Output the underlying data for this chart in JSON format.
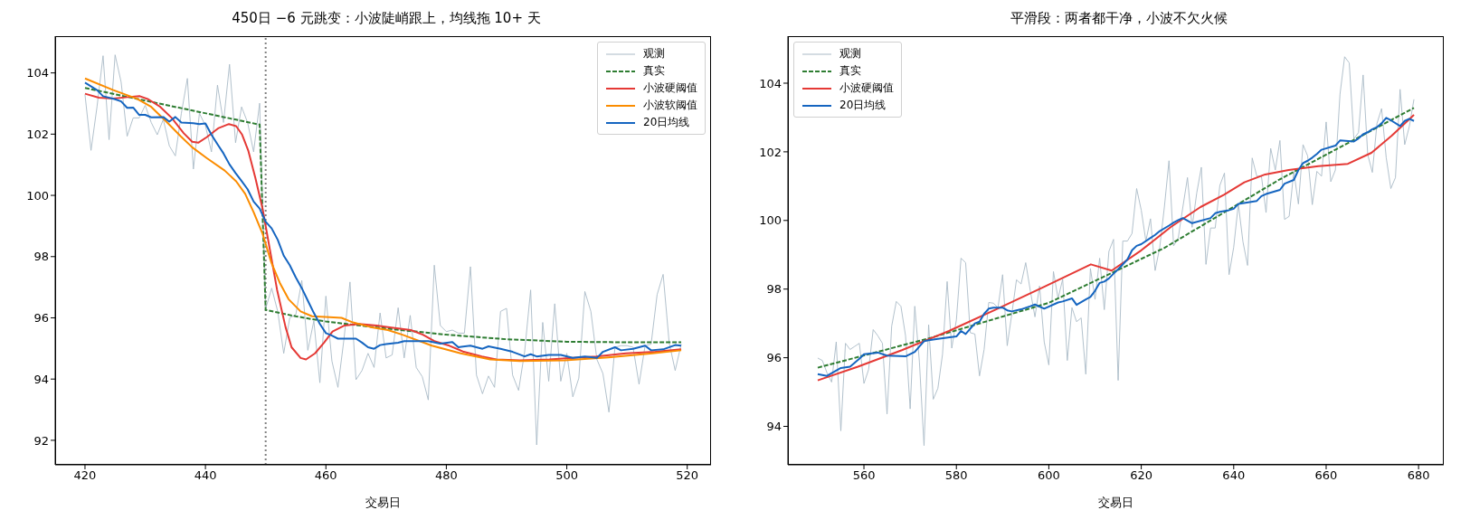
{
  "chart_data": [
    {
      "type": "line",
      "title": "450日 −6 元跳变：小波陡峭跟上，均线拖 10+ 天",
      "xlabel": "交易日",
      "xlim": [
        415.05,
        523.95
      ],
      "xticks": [
        420,
        440,
        460,
        480,
        500,
        520
      ],
      "ylim": [
        91.2,
        105.2
      ],
      "yticks": [
        92,
        94,
        96,
        98,
        100,
        102,
        104
      ],
      "legend": "top right",
      "ref_lines": [
        {
          "axis": "x",
          "value": 450,
          "color": "#808080",
          "line_style": "dotted"
        }
      ],
      "series": [
        {
          "name": "观测",
          "color": "#a9bac6",
          "x": [
            420,
            421,
            422,
            423,
            424,
            425,
            426,
            427,
            428,
            429,
            430,
            431,
            432,
            433,
            434,
            435,
            436,
            437,
            438,
            439,
            440,
            441,
            442,
            443,
            444,
            445,
            446,
            447,
            448,
            449,
            450,
            451,
            452,
            453,
            454,
            455,
            456,
            457,
            458,
            459,
            460,
            461,
            462,
            463,
            464,
            465,
            466,
            467,
            468,
            469,
            470,
            471,
            472,
            473,
            474,
            475,
            476,
            477,
            478,
            479,
            480,
            481,
            482,
            483,
            484,
            485,
            486,
            487,
            488,
            489,
            490,
            491,
            492,
            493,
            494,
            495,
            496,
            497,
            498,
            499,
            500,
            501,
            502,
            503,
            504,
            505,
            506,
            507,
            508,
            509,
            510,
            511,
            512,
            513,
            514,
            515,
            516,
            517,
            518,
            519
          ],
          "values": [
            103.29,
            101.47,
            102.9,
            104.56,
            101.82,
            104.59,
            103.7,
            101.93,
            102.53,
            102.53,
            102.94,
            102.38,
            101.98,
            102.48,
            101.62,
            101.29,
            102.68,
            103.82,
            100.86,
            102.68,
            102.28,
            101.42,
            103.6,
            102.38,
            104.28,
            101.72,
            102.89,
            102.38,
            101.42,
            103.01,
            96.3,
            96.97,
            96.21,
            94.84,
            96.0,
            96.1,
            97.22,
            94.94,
            95.9,
            93.88,
            96.71,
            94.59,
            93.73,
            95.3,
            97.17,
            93.98,
            94.28,
            94.84,
            94.38,
            96.16,
            94.69,
            94.79,
            96.33,
            94.69,
            96.08,
            94.38,
            94.08,
            93.32,
            97.72,
            95.75,
            95.55,
            95.6,
            95.5,
            95.5,
            97.67,
            94.13,
            93.52,
            94.1,
            93.73,
            96.21,
            96.31,
            94.13,
            93.63,
            94.89,
            96.91,
            91.85,
            95.85,
            93.93,
            96.46,
            93.93,
            94.84,
            93.42,
            94.03,
            96.86,
            96.21,
            94.64,
            94.18,
            92.92,
            95.04,
            95.09,
            95.09,
            95.04,
            93.83,
            95.09,
            95.14,
            96.76,
            97.42,
            95.19,
            94.28,
            95.14
          ]
        },
        {
          "name": "真实",
          "color": "#2e7d32",
          "line_style": "dashed",
          "x": [
            420,
            449,
            450,
            455,
            460,
            470,
            480,
            490,
            500,
            510,
            519
          ],
          "values": [
            103.51,
            102.31,
            96.26,
            96.05,
            95.88,
            95.65,
            95.45,
            95.3,
            95.22,
            95.2,
            95.2
          ]
        },
        {
          "name": "小波硬阈值",
          "color": "#e53935",
          "x": [
            420,
            422.3,
            424.7,
            427.1,
            429.1,
            430.5,
            432.5,
            434.4,
            436.4,
            437.8,
            438.8,
            440.2,
            442.2,
            443.9,
            445.1,
            446.1,
            447.1,
            448.3,
            449.5,
            450.7,
            451.9,
            453.3,
            454.3,
            455.8,
            456.7,
            458.2,
            459.7,
            461.1,
            463.1,
            465.5,
            468.4,
            470.3,
            474.1,
            476.1,
            478,
            480.5,
            482.9,
            485.9,
            488.3,
            492.2,
            497.1,
            501,
            504.9,
            509.8,
            514.7,
            519
          ],
          "values": [
            103.32,
            103.19,
            103.16,
            103.21,
            103.24,
            103.14,
            102.89,
            102.53,
            102.03,
            101.75,
            101.72,
            101.9,
            102.2,
            102.33,
            102.26,
            101.98,
            101.47,
            100.56,
            99.55,
            98.23,
            96.91,
            95.7,
            95.04,
            94.69,
            94.64,
            94.84,
            95.19,
            95.55,
            95.75,
            95.8,
            95.75,
            95.7,
            95.6,
            95.45,
            95.24,
            95.09,
            94.89,
            94.74,
            94.64,
            94.61,
            94.64,
            94.69,
            94.74,
            94.84,
            94.89,
            94.97
          ]
        },
        {
          "name": "小波软阈值",
          "color": "#fb8c00",
          "x": [
            420,
            424.7,
            428.6,
            431,
            433.4,
            435.9,
            437.8,
            440.2,
            443.2,
            445.1,
            446.6,
            448,
            449.5,
            450.9,
            452.4,
            453.8,
            455.8,
            457.7,
            460.6,
            462.6,
            464.5,
            467.4,
            470.3,
            472.7,
            477.6,
            482.4,
            487.3,
            492.2,
            499.6,
            506.9,
            514.2,
            519
          ],
          "values": [
            103.82,
            103.44,
            103.16,
            102.89,
            102.43,
            101.93,
            101.57,
            101.22,
            100.81,
            100.46,
            100.05,
            99.45,
            98.74,
            97.83,
            97.12,
            96.61,
            96.21,
            96.05,
            96.02,
            96.0,
            95.85,
            95.7,
            95.6,
            95.45,
            95.09,
            94.84,
            94.64,
            94.59,
            94.61,
            94.71,
            94.84,
            94.94
          ]
        },
        {
          "name": "20日均线",
          "color": "#1565c0",
          "x": [
            420,
            422,
            423,
            425,
            426,
            427,
            428,
            429,
            430,
            431,
            433,
            434,
            435,
            436,
            438,
            439,
            440,
            441,
            442,
            443,
            444,
            445,
            446,
            447,
            448,
            449,
            450,
            451,
            452,
            453,
            454,
            455,
            456,
            457,
            458,
            459,
            460,
            461,
            462,
            465,
            466,
            467,
            468,
            469,
            470,
            472,
            473,
            477,
            479,
            481,
            482,
            484,
            486,
            487,
            489,
            491,
            493,
            494,
            495,
            497,
            499,
            501,
            503,
            505,
            506,
            508,
            509,
            511,
            513,
            514,
            516,
            518,
            519
          ],
          "values": [
            103.68,
            103.44,
            103.24,
            103.14,
            103.07,
            102.86,
            102.87,
            102.63,
            102.63,
            102.55,
            102.56,
            102.41,
            102.56,
            102.38,
            102.36,
            102.33,
            102.35,
            101.98,
            101.67,
            101.37,
            101.01,
            100.73,
            100.47,
            100.2,
            99.8,
            99.57,
            99.14,
            98.92,
            98.55,
            98.03,
            97.72,
            97.32,
            96.97,
            96.56,
            96.16,
            95.8,
            95.5,
            95.42,
            95.32,
            95.32,
            95.19,
            95.04,
            94.99,
            95.11,
            95.14,
            95.19,
            95.24,
            95.24,
            95.16,
            95.21,
            95.04,
            95.09,
            94.99,
            95.07,
            94.99,
            94.89,
            94.74,
            94.81,
            94.74,
            94.79,
            94.79,
            94.69,
            94.74,
            94.69,
            94.89,
            95.04,
            94.94,
            94.99,
            95.09,
            94.94,
            94.97,
            95.11,
            95.09
          ]
        }
      ]
    },
    {
      "type": "line",
      "title": "平滑段：两者都干净，小波不欠火候",
      "xlabel": "交易日",
      "xlim": [
        543.55,
        685.45
      ],
      "xticks": [
        560,
        580,
        600,
        620,
        640,
        660,
        680
      ],
      "ylim": [
        92.88,
        105.37
      ],
      "yticks": [
        94,
        96,
        98,
        100,
        102,
        104
      ],
      "legend": "top left",
      "series": [
        {
          "name": "观测",
          "color": "#a9bac6",
          "x": [
            550,
            551,
            552,
            553,
            554,
            555,
            556,
            557,
            558,
            559,
            560,
            561,
            562,
            563,
            564,
            565,
            566,
            567,
            568,
            569,
            570,
            571,
            572,
            573,
            574,
            575,
            576,
            577,
            578,
            579,
            580,
            581,
            582,
            583,
            584,
            585,
            586,
            587,
            588,
            589,
            590,
            591,
            592,
            593,
            594,
            595,
            596,
            597,
            598,
            599,
            600,
            601,
            602,
            603,
            604,
            605,
            606,
            607,
            608,
            609,
            610,
            611,
            612,
            613,
            614,
            615,
            616,
            617,
            618,
            619,
            620,
            621,
            622,
            623,
            624,
            625,
            626,
            627,
            628,
            629,
            630,
            631,
            632,
            633,
            634,
            635,
            636,
            637,
            638,
            639,
            640,
            641,
            642,
            643,
            644,
            645,
            646,
            647,
            648,
            649,
            650,
            651,
            652,
            653,
            654,
            655,
            656,
            657,
            658,
            659,
            660,
            661,
            662,
            663,
            664,
            665,
            666,
            667,
            668,
            669,
            670,
            671,
            672,
            673,
            674,
            675,
            676,
            677,
            678,
            679
          ],
          "values": [
            95.99,
            95.92,
            95.56,
            95.29,
            96.46,
            93.87,
            96.42,
            96.24,
            96.33,
            96.42,
            95.25,
            95.65,
            96.82,
            96.64,
            96.42,
            94.36,
            96.92,
            97.64,
            97.5,
            96.64,
            94.51,
            97.5,
            95.88,
            93.44,
            96.96,
            94.79,
            95.11,
            96.1,
            98.22,
            96.28,
            97.1,
            98.9,
            98.77,
            96.73,
            96.69,
            95.47,
            96.24,
            97.61,
            97.59,
            97.46,
            98.42,
            96.35,
            97.28,
            98.27,
            98.15,
            98.77,
            97.95,
            97.19,
            98.09,
            96.46,
            95.79,
            98.51,
            97.73,
            98.29,
            95.92,
            97.46,
            97.05,
            97.16,
            95.52,
            98.6,
            97.7,
            98.9,
            97.4,
            99.1,
            99.45,
            95.34,
            99.4,
            99.4,
            99.62,
            100.93,
            100.3,
            99.4,
            100.05,
            98.54,
            99.22,
            100.39,
            101.74,
            99.26,
            99.49,
            100.39,
            101.25,
            99.8,
            100.8,
            101.55,
            98.72,
            99.78,
            99.78,
            101.02,
            101.38,
            98.42,
            99.22,
            100.48,
            99.38,
            98.69,
            101.82,
            101.29,
            101.29,
            100.23,
            102.1,
            101.47,
            102.33,
            100.03,
            100.12,
            101.43,
            100.48,
            102.21,
            101.88,
            100.46,
            101.43,
            101.29,
            102.87,
            101.13,
            101.47,
            103.68,
            104.77,
            104.59,
            102.38,
            102.56,
            104.24,
            101.92,
            101.4,
            102.83,
            103.26,
            101.83,
            100.93,
            101.25,
            103.82,
            102.21,
            102.74,
            103.53
          ]
        },
        {
          "name": "真实",
          "color": "#2e7d32",
          "line_style": "dashed",
          "x": [
            550,
            575,
            600,
            625,
            650,
            679
          ],
          "values": [
            95.71,
            96.6,
            97.6,
            99.2,
            101.2,
            103.28
          ]
        },
        {
          "name": "小波硬阈值",
          "color": "#e53935",
          "x": [
            550,
            558.7,
            568.2,
            578.4,
            588.6,
            598.9,
            609.1,
            613.6,
            620,
            626.4,
            632.8,
            637.9,
            642.3,
            646.8,
            651.9,
            658.3,
            664.7,
            669.8,
            674.2,
            679
          ],
          "values": [
            95.34,
            95.74,
            96.22,
            96.78,
            97.41,
            98.06,
            98.72,
            98.54,
            99.13,
            99.81,
            100.39,
            100.75,
            101.11,
            101.34,
            101.47,
            101.58,
            101.65,
            101.97,
            102.47,
            103.08
          ]
        },
        {
          "name": "20日均线",
          "color": "#1565c0",
          "x": [
            550,
            552,
            555,
            557,
            559,
            560,
            563,
            565,
            569,
            571,
            572,
            573,
            574,
            576,
            580,
            581,
            582,
            584,
            585,
            586,
            587,
            588,
            590,
            591,
            592,
            594,
            596,
            597,
            599,
            602,
            603,
            605,
            606,
            608,
            609,
            610,
            611,
            612,
            613,
            614,
            615,
            617,
            618,
            619,
            620,
            622,
            623,
            624,
            626,
            627,
            628,
            629,
            631,
            635,
            636,
            637,
            639,
            640,
            641,
            645,
            646,
            647,
            650,
            651,
            653,
            654,
            655,
            656,
            657,
            658,
            659,
            662,
            663,
            666,
            667,
            668,
            669,
            670,
            671,
            672,
            673,
            674,
            676,
            677,
            678,
            679
          ],
          "values": [
            95.52,
            95.47,
            95.7,
            95.74,
            95.97,
            96.1,
            96.15,
            96.06,
            96.04,
            96.17,
            96.33,
            96.48,
            96.51,
            96.55,
            96.62,
            96.78,
            96.69,
            97.0,
            97.05,
            97.28,
            97.43,
            97.46,
            97.46,
            97.38,
            97.35,
            97.41,
            97.5,
            97.55,
            97.43,
            97.61,
            97.64,
            97.73,
            97.54,
            97.7,
            97.77,
            97.95,
            98.18,
            98.22,
            98.31,
            98.45,
            98.58,
            98.86,
            99.13,
            99.26,
            99.31,
            99.49,
            99.58,
            99.69,
            99.85,
            99.94,
            100.01,
            100.07,
            99.92,
            100.07,
            100.21,
            100.25,
            100.3,
            100.34,
            100.48,
            100.57,
            100.71,
            100.77,
            100.89,
            101.07,
            101.18,
            101.47,
            101.67,
            101.74,
            101.83,
            101.94,
            102.06,
            102.18,
            102.33,
            102.3,
            102.39,
            102.51,
            102.57,
            102.66,
            102.72,
            102.83,
            102.99,
            102.92,
            102.75,
            102.9,
            102.96,
            102.9
          ]
        }
      ]
    }
  ]
}
